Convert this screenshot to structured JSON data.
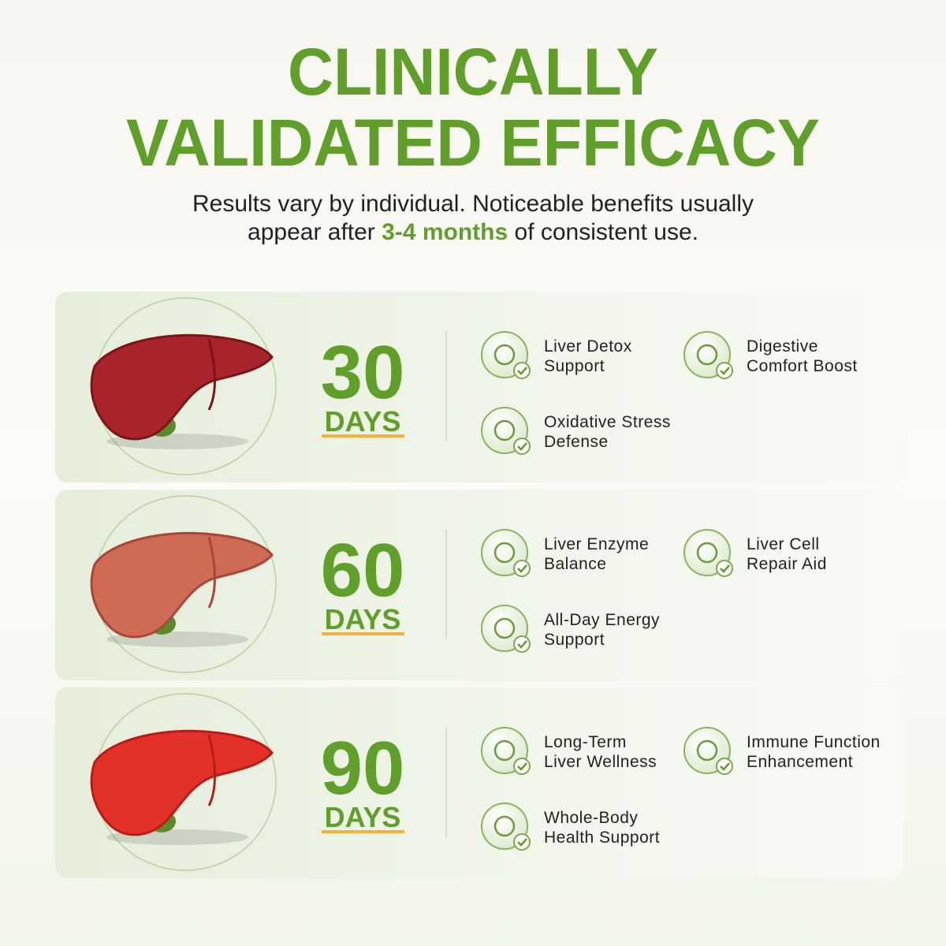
{
  "header": {
    "title_lines": [
      "CLINICALLY",
      "VALIDATED EFFICACY"
    ],
    "subtitle": {
      "line1": "Results vary by individual. Noticeable benefits usually",
      "before": "appear after",
      "highlight": "3-4 months",
      "after": "of consistent use."
    }
  },
  "stages": [
    {
      "number": "30",
      "unit": "DAYS",
      "benefits": [
        [
          "Liver Detox",
          "Support"
        ],
        [
          "Digestive",
          "Comfort Boost"
        ],
        [
          "Oxidative Stress",
          "Defense"
        ]
      ]
    },
    {
      "number": "60",
      "unit": "DAYS",
      "benefits": [
        [
          "Liver Enzyme",
          "Balance"
        ],
        [
          "Liver Cell",
          "Repair Aid"
        ],
        [
          "All-Day Energy",
          "Support"
        ]
      ]
    },
    {
      "number": "90",
      "unit": "DAYS",
      "benefits": [
        [
          "Long-Term",
          "Liver Wellness"
        ],
        [
          "Immune Function",
          "Enhancement"
        ],
        [
          "Whole-Body",
          "Health Support"
        ]
      ]
    }
  ]
}
